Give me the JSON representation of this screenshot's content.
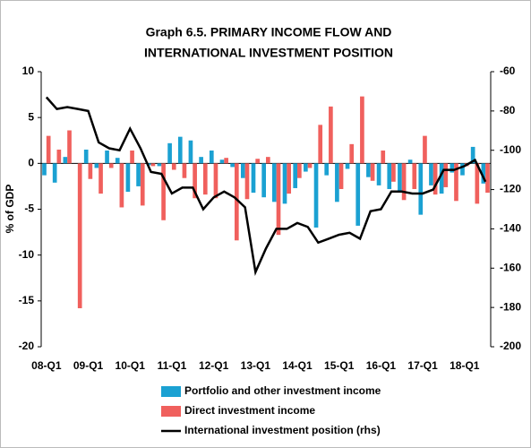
{
  "chart_data": {
    "type": "bar-line",
    "title": "Graph 6.5. PRIMARY INCOME FLOW AND",
    "subtitle": "INTERNATIONAL INVESTMENT POSITION",
    "ylabel": "% of GDP",
    "categories": [
      "08-Q1",
      null,
      null,
      null,
      "09-Q1",
      null,
      null,
      null,
      "10-Q1",
      null,
      null,
      null,
      "11-Q1",
      null,
      null,
      null,
      "12-Q1",
      null,
      null,
      null,
      "13-Q1",
      null,
      null,
      null,
      "14-Q1",
      null,
      null,
      null,
      "15-Q1",
      null,
      null,
      null,
      "16-Q1",
      null,
      null,
      null,
      "17-Q1",
      null,
      null,
      null,
      "18-Q1",
      null,
      null
    ],
    "series": [
      {
        "name": "Portfolio and other investment income",
        "color": "#1ba1d2",
        "kind": "bar",
        "values": [
          -1.3,
          -2.1,
          0.7,
          0,
          1.5,
          -0.5,
          1.4,
          0.6,
          -3.1,
          -2.5,
          -0.2,
          -0.3,
          2.2,
          2.9,
          2.5,
          0.7,
          1.4,
          0.4,
          -0.4,
          -1.6,
          -3.2,
          -3.7,
          -4.2,
          -4.4,
          -2.7,
          -0.9,
          -7,
          -1.3,
          -4.2,
          -0.6,
          -6.8,
          -1.5,
          -2.4,
          -2.8,
          -3,
          0.4,
          -5.6,
          -2.4,
          -3.3,
          -1,
          -1.3,
          1.8,
          -2.2
        ]
      },
      {
        "name": "Direct investment income",
        "color": "#f0605d",
        "kind": "bar",
        "values": [
          3,
          1.5,
          3.6,
          -15.8,
          -1.7,
          -3.3,
          -0.5,
          -4.8,
          1.4,
          -4.6,
          -0.3,
          -6.2,
          -0.7,
          -1.6,
          -3.8,
          -3.4,
          -3.8,
          0.6,
          -8.4,
          -3.9,
          0.5,
          0.7,
          -7.8,
          -3.3,
          -1.6,
          -0.5,
          4.2,
          6.2,
          -2.8,
          2.1,
          7.3,
          -1.9,
          1.4,
          -2,
          -4,
          -2.8,
          3,
          -3.4,
          -2.6,
          -4.1,
          -0.3,
          -4.4,
          -3.2
        ]
      },
      {
        "name": "International investment position (rhs)",
        "color": "#000000",
        "kind": "line",
        "axis": "y2",
        "values": [
          -73,
          -79,
          -78,
          -79,
          -80,
          -96,
          -99,
          -100,
          -89,
          -99,
          -111,
          -112,
          -122,
          -119,
          -119,
          -130,
          -124,
          -121,
          -124,
          -129,
          -162,
          -150,
          -140,
          -140,
          -137,
          -139,
          -147,
          -145,
          -143,
          -142,
          -145,
          -131,
          -130,
          -121,
          -121,
          -122,
          -122,
          -120,
          -110,
          -110,
          -108,
          -105,
          -116
        ]
      }
    ],
    "ylim": [
      -20,
      10
    ],
    "yticks": [
      10,
      5,
      0,
      -5,
      -10,
      -15,
      -20
    ],
    "y2lim": [
      -200,
      -60
    ],
    "y2ticks": [
      -60,
      -80,
      -100,
      -120,
      -140,
      -160,
      -180,
      -200
    ],
    "grid": false
  }
}
